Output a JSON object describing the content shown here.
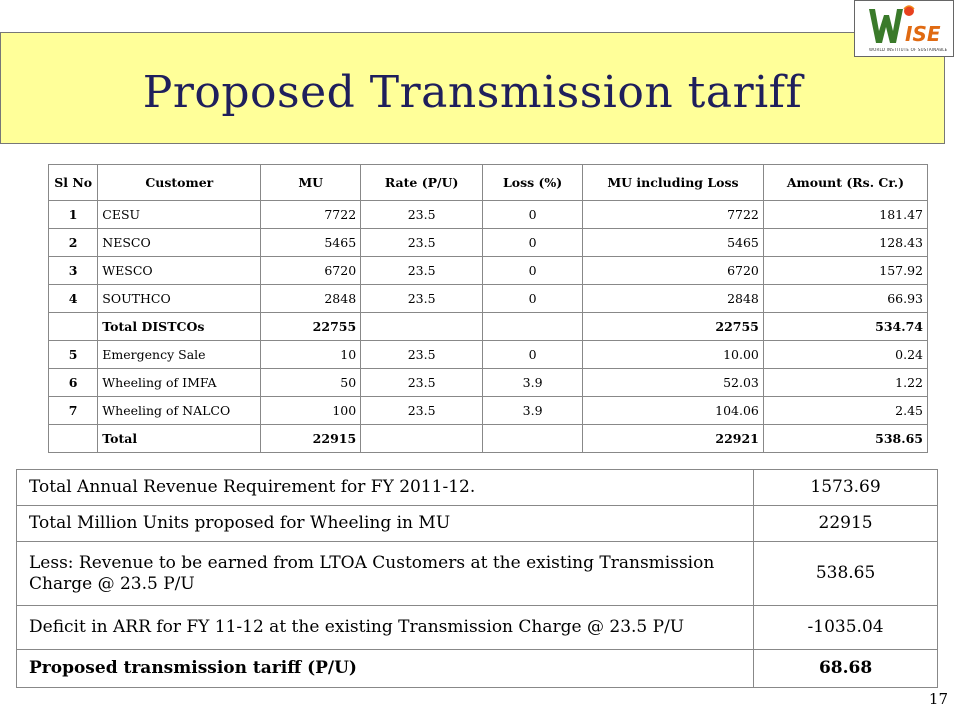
{
  "slide": {
    "title": "Proposed Transmission tariff",
    "page_number": "17",
    "logo_tagline": "WORLD INSTITUTE OF SUSTAINABLE ENERGY",
    "logo_text": "WISE"
  },
  "tariff_table": {
    "headers": [
      "Sl No",
      "Customer",
      "MU",
      "Rate (P/U)",
      "Loss (%)",
      "MU including Loss",
      "Amount (Rs. Cr.)"
    ],
    "rows": [
      {
        "sl": "1",
        "customer": "CESU",
        "mu": "7722",
        "rate": "23.5",
        "loss": "0",
        "mu_loss": "7722",
        "amount": "181.47"
      },
      {
        "sl": "2",
        "customer": "NESCO",
        "mu": "5465",
        "rate": "23.5",
        "loss": "0",
        "mu_loss": "5465",
        "amount": "128.43"
      },
      {
        "sl": "3",
        "customer": "WESCO",
        "mu": "6720",
        "rate": "23.5",
        "loss": "0",
        "mu_loss": "6720",
        "amount": "157.92"
      },
      {
        "sl": "4",
        "customer": "SOUTHCO",
        "mu": "2848",
        "rate": "23.5",
        "loss": "0",
        "mu_loss": "2848",
        "amount": "66.93"
      },
      {
        "sl": "",
        "customer": "Total DISTCOs",
        "mu": "22755",
        "rate": "",
        "loss": "",
        "mu_loss": "22755",
        "amount": "534.74"
      },
      {
        "sl": "5",
        "customer": "Emergency Sale",
        "mu": "10",
        "rate": "23.5",
        "loss": "0",
        "mu_loss": "10.00",
        "amount": "0.24"
      },
      {
        "sl": "6",
        "customer": "Wheeling of IMFA",
        "mu": "50",
        "rate": "23.5",
        "loss": "3.9",
        "mu_loss": "52.03",
        "amount": "1.22"
      },
      {
        "sl": "7",
        "customer": "Wheeling of NALCO",
        "mu": "100",
        "rate": "23.5",
        "loss": "3.9",
        "mu_loss": "104.06",
        "amount": "2.45"
      },
      {
        "sl": "",
        "customer": "Total",
        "mu": "22915",
        "rate": "",
        "loss": "",
        "mu_loss": "22921",
        "amount": "538.65"
      }
    ]
  },
  "summary_table": {
    "rows": [
      {
        "label": "Total Annual Revenue Requirement for FY 2011-12.",
        "value": "1573.69"
      },
      {
        "label": "Total Million Units proposed for Wheeling in MU",
        "value": "22915"
      },
      {
        "label": "Less: Revenue to be earned from LTOA Customers at the existing Transmission Charge @ 23.5 P/U",
        "value": "538.65"
      },
      {
        "label": "Deficit in ARR for FY 11-12 at the existing Transmission Charge @ 23.5 P/U",
        "value": "-1035.04"
      },
      {
        "label": "Proposed transmission tariff (P/U)",
        "value": "68.68"
      }
    ]
  }
}
